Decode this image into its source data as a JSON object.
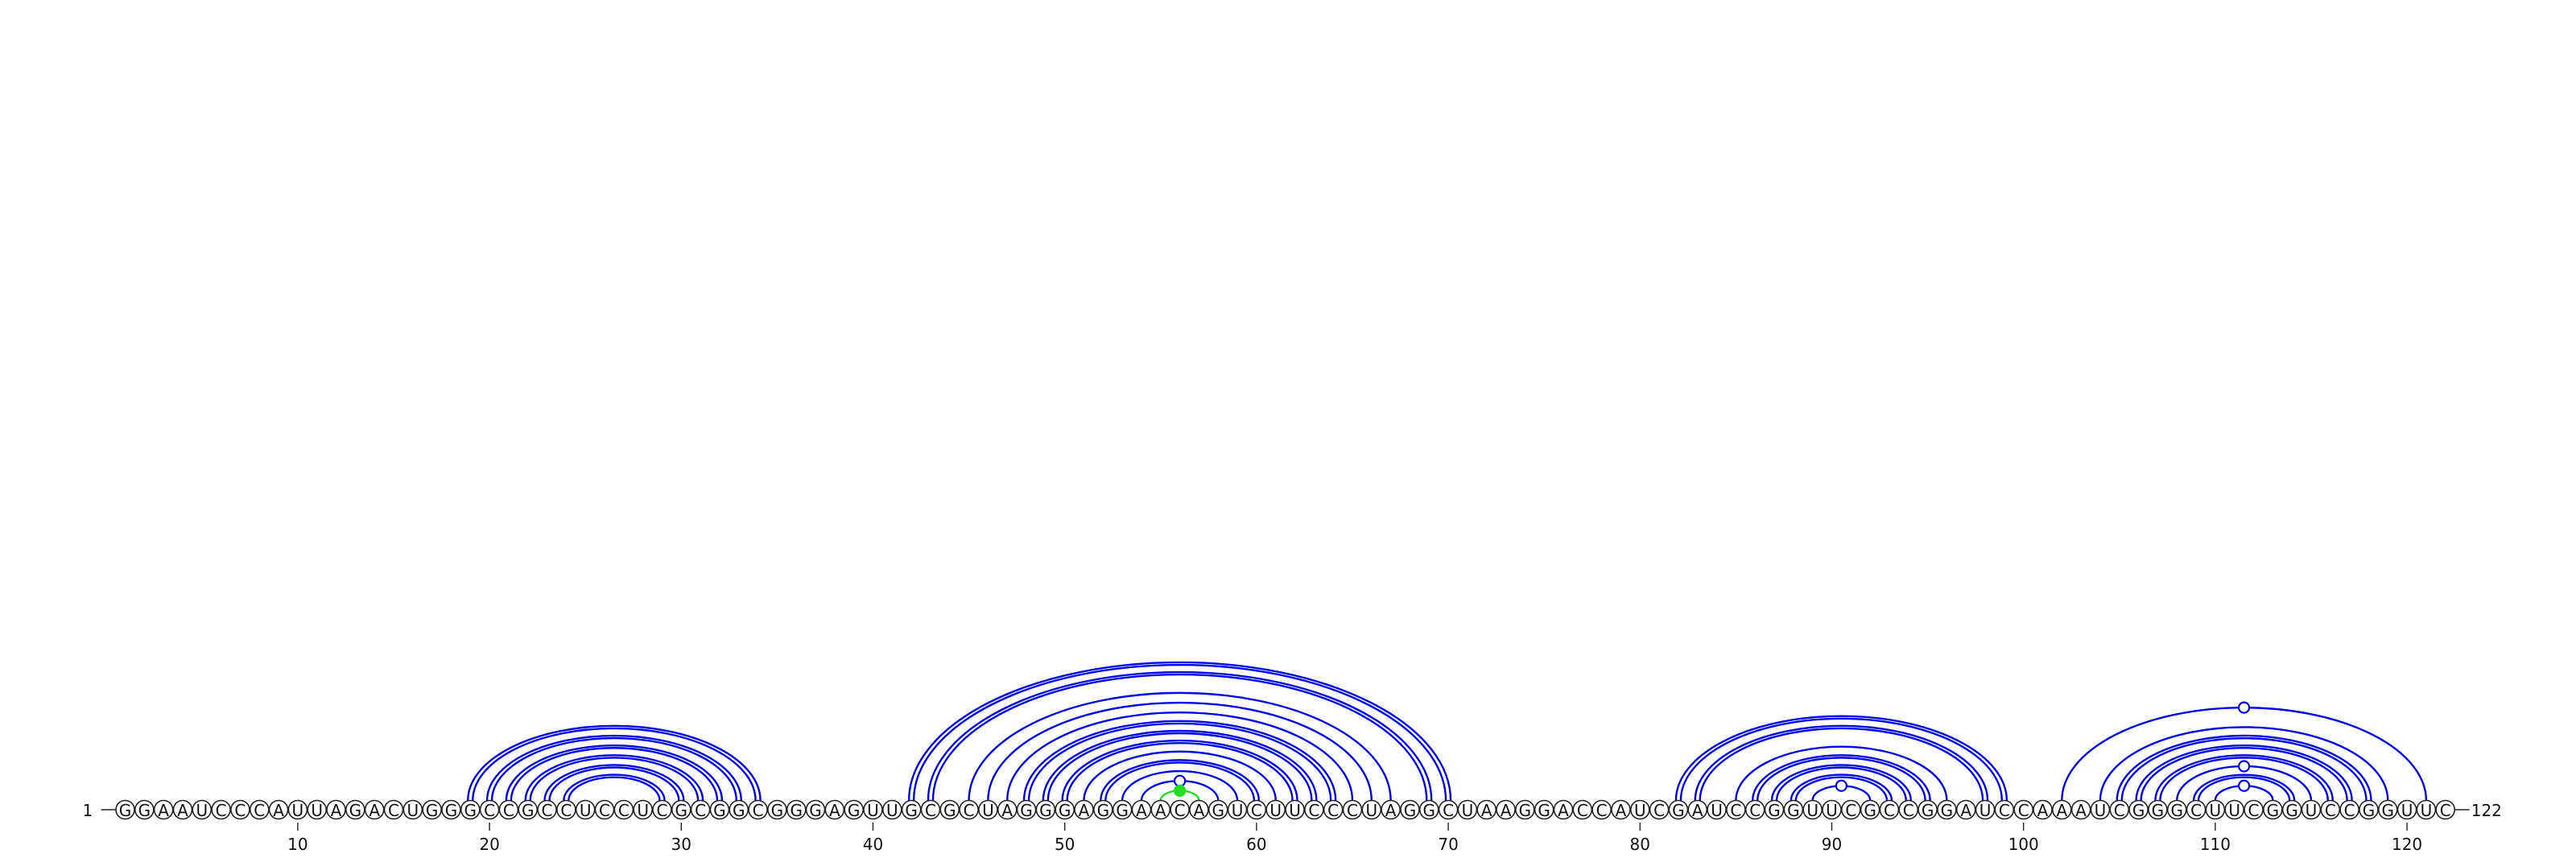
{
  "sequence": {
    "bases": "GGAAUCCCAUUAGACUGGGCCGCCUCCUCGCGGCGGGAGUUGCGCUAGGGAGGAACAGUCUUCCCUAGGCUAAGGACCAUCGAUCCGGUUCGCCGGAUCCAAAUCGGGCUUCGGUCCGGUUC",
    "start_label": "1",
    "end_label": "122",
    "length": 122
  },
  "axis": {
    "ticks": [
      "10",
      "20",
      "30",
      "40",
      "50",
      "60",
      "70",
      "80",
      "90",
      "100",
      "110",
      "120"
    ]
  },
  "colors": {
    "pair_arc": "#0000ee",
    "green_arc": "#22dd22",
    "marker_fill_open": "#ffffff",
    "marker_fill_green": "#22dd22"
  },
  "arcs": [
    {
      "i": 19,
      "j": 34,
      "color": "blue",
      "double": true
    },
    {
      "i": 20,
      "j": 33,
      "color": "blue",
      "double": true
    },
    {
      "i": 21,
      "j": 32,
      "color": "blue",
      "double": true
    },
    {
      "i": 22,
      "j": 31,
      "color": "blue",
      "double": true
    },
    {
      "i": 23,
      "j": 30,
      "color": "blue",
      "double": true
    },
    {
      "i": 24,
      "j": 29,
      "color": "blue",
      "double": true
    },
    {
      "i": 42,
      "j": 70,
      "color": "blue",
      "double": true
    },
    {
      "i": 43,
      "j": 69,
      "color": "blue",
      "double": true
    },
    {
      "i": 45,
      "j": 67,
      "color": "blue",
      "double": false
    },
    {
      "i": 46,
      "j": 66,
      "color": "blue",
      "double": false
    },
    {
      "i": 47,
      "j": 65,
      "color": "blue",
      "double": false
    },
    {
      "i": 48,
      "j": 64,
      "color": "blue",
      "double": true
    },
    {
      "i": 49,
      "j": 63,
      "color": "blue",
      "double": true
    },
    {
      "i": 50,
      "j": 62,
      "color": "blue",
      "double": true
    },
    {
      "i": 51,
      "j": 61,
      "color": "blue",
      "double": false
    },
    {
      "i": 52,
      "j": 60,
      "color": "blue",
      "double": true
    },
    {
      "i": 53,
      "j": 59,
      "color": "blue",
      "double": false
    },
    {
      "i": 54,
      "j": 58,
      "color": "blue",
      "double": false,
      "marker": "open"
    },
    {
      "i": 55,
      "j": 57,
      "color": "green",
      "double": false,
      "marker": "green"
    },
    {
      "i": 82,
      "j": 99,
      "color": "blue",
      "double": true
    },
    {
      "i": 83,
      "j": 98,
      "color": "blue",
      "double": true
    },
    {
      "i": 85,
      "j": 96,
      "color": "blue",
      "double": false
    },
    {
      "i": 86,
      "j": 95,
      "color": "blue",
      "double": true
    },
    {
      "i": 87,
      "j": 94,
      "color": "blue",
      "double": true
    },
    {
      "i": 88,
      "j": 93,
      "color": "blue",
      "double": true
    },
    {
      "i": 89,
      "j": 92,
      "color": "blue",
      "double": false,
      "marker": "open"
    },
    {
      "i": 102,
      "j": 121,
      "color": "blue",
      "double": false,
      "marker": "open"
    },
    {
      "i": 104,
      "j": 119,
      "color": "blue",
      "double": false
    },
    {
      "i": 105,
      "j": 118,
      "color": "blue",
      "double": true
    },
    {
      "i": 106,
      "j": 117,
      "color": "blue",
      "double": true
    },
    {
      "i": 107,
      "j": 116,
      "color": "blue",
      "double": true
    },
    {
      "i": 108,
      "j": 115,
      "color": "blue",
      "double": false,
      "marker": "open"
    },
    {
      "i": 109,
      "j": 114,
      "color": "blue",
      "double": true
    },
    {
      "i": 110,
      "j": 113,
      "color": "blue",
      "double": false,
      "marker": "open"
    }
  ]
}
